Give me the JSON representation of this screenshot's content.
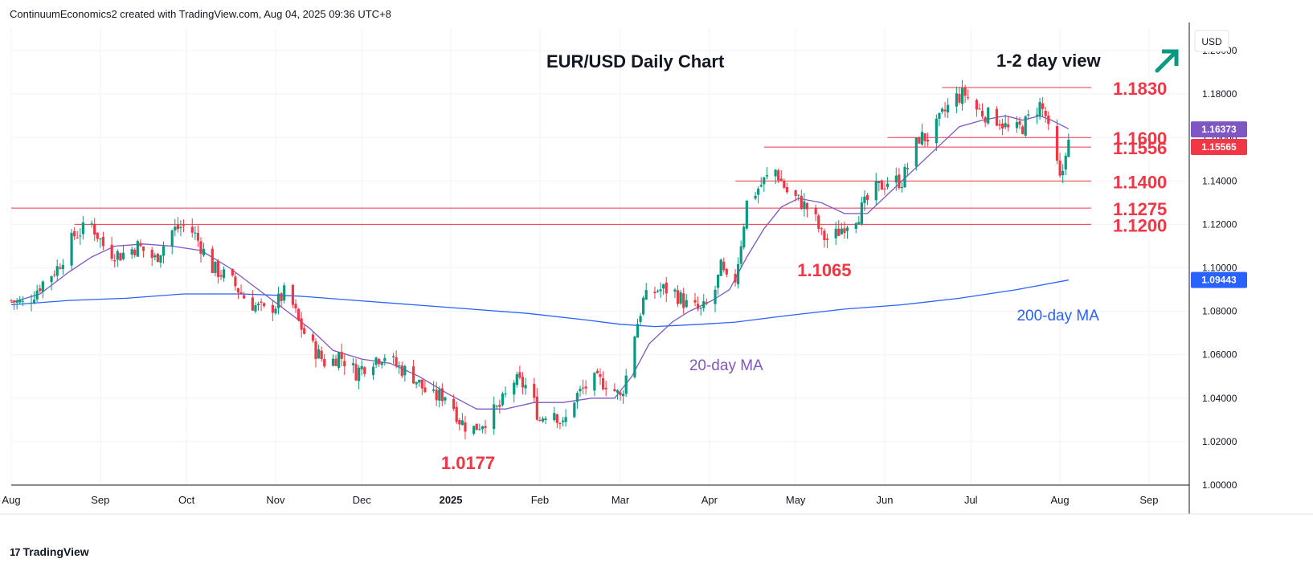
{
  "header": {
    "attribution": "ContinuumEconomics2 created with TradingView.com, Aug 04, 2025 09:36 UTC+8"
  },
  "footer": {
    "logo_mark": "17",
    "logo_text": "TradingView"
  },
  "chart_data": {
    "type": "candlestick",
    "title": "EUR/USD Daily Chart",
    "subtitle": "1-2 day view",
    "currency": "USD",
    "view_direction": "up",
    "ylim": [
      1.0,
      1.21
    ],
    "y_ticks": [
      "1.00000",
      "1.02000",
      "1.04000",
      "1.06000",
      "1.08000",
      "1.10000",
      "1.12000",
      "1.14000",
      "1.16000",
      "1.18000",
      "1.20000"
    ],
    "x_ticks": [
      {
        "label": "Aug",
        "t": 0
      },
      {
        "label": "Sep",
        "t": 31
      },
      {
        "label": "Oct",
        "t": 61
      },
      {
        "label": "Nov",
        "t": 92
      },
      {
        "label": "Dec",
        "t": 122
      },
      {
        "label": "2025",
        "t": 153,
        "bold": true
      },
      {
        "label": "Feb",
        "t": 184
      },
      {
        "label": "Mar",
        "t": 212
      },
      {
        "label": "Apr",
        "t": 243
      },
      {
        "label": "May",
        "t": 273
      },
      {
        "label": "Jun",
        "t": 304
      },
      {
        "label": "Jul",
        "t": 334
      },
      {
        "label": "Aug",
        "t": 365
      },
      {
        "label": "Sep",
        "t": 396
      }
    ],
    "colors": {
      "up": "#089981",
      "down": "#f23645",
      "level": "#f23645",
      "ma20": "#7e57c2",
      "ma200": "#2962ff",
      "arrow": "#089981"
    },
    "levels": [
      {
        "value": 1.183,
        "label": "1.1830",
        "from_t": 324
      },
      {
        "value": 1.16,
        "label": "1.1600",
        "from_t": 305
      },
      {
        "value": 1.1556,
        "label": "1.1556",
        "from_t": 262
      },
      {
        "value": 1.14,
        "label": "1.1400",
        "from_t": 252
      },
      {
        "value": 1.1275,
        "label": "1.1275",
        "from_t": 0
      },
      {
        "value": 1.12,
        "label": "1.1200",
        "from_t": 22
      }
    ],
    "price_tags": [
      {
        "value": 1.16373,
        "label": "1.16373",
        "color": "#7e57c2"
      },
      {
        "value": 1.15565,
        "label": "1.15565",
        "color": "#f23645"
      },
      {
        "value": 1.09443,
        "label": "1.09443",
        "color": "#2962ff"
      }
    ],
    "annotations": [
      {
        "text": "1.0177",
        "t": 159,
        "value": 1.0177
      },
      {
        "text": "1.1065",
        "t": 283,
        "value": 1.1065
      }
    ],
    "ma_labels": [
      {
        "text": "20-day MA",
        "t": 236,
        "value": 1.055
      },
      {
        "text": "200-day MA",
        "t": 350,
        "value": 1.078
      }
    ],
    "price_path": [
      [
        0,
        1.085
      ],
      [
        5,
        1.083
      ],
      [
        10,
        1.092
      ],
      [
        16,
        1.1
      ],
      [
        22,
        1.115
      ],
      [
        28,
        1.12
      ],
      [
        33,
        1.108
      ],
      [
        38,
        1.106
      ],
      [
        44,
        1.11
      ],
      [
        50,
        1.104
      ],
      [
        56,
        1.117
      ],
      [
        61,
        1.12
      ],
      [
        64,
        1.115
      ],
      [
        70,
        1.1
      ],
      [
        76,
        1.095
      ],
      [
        82,
        1.085
      ],
      [
        88,
        1.08
      ],
      [
        92,
        1.083
      ],
      [
        96,
        1.09
      ],
      [
        100,
        1.075
      ],
      [
        104,
        1.065
      ],
      [
        110,
        1.055
      ],
      [
        114,
        1.06
      ],
      [
        120,
        1.052
      ],
      [
        126,
        1.058
      ],
      [
        130,
        1.06
      ],
      [
        134,
        1.055
      ],
      [
        140,
        1.05
      ],
      [
        146,
        1.04
      ],
      [
        152,
        1.042
      ],
      [
        156,
        1.03
      ],
      [
        160,
        1.025
      ],
      [
        165,
        1.03
      ],
      [
        170,
        1.036
      ],
      [
        175,
        1.048
      ],
      [
        180,
        1.045
      ],
      [
        184,
        1.03
      ],
      [
        188,
        1.037
      ],
      [
        192,
        1.027
      ],
      [
        196,
        1.04
      ],
      [
        202,
        1.048
      ],
      [
        208,
        1.047
      ],
      [
        212,
        1.04
      ],
      [
        214,
        1.05
      ],
      [
        217,
        1.07
      ],
      [
        220,
        1.085
      ],
      [
        225,
        1.09
      ],
      [
        230,
        1.09
      ],
      [
        235,
        1.083
      ],
      [
        240,
        1.08
      ],
      [
        244,
        1.085
      ],
      [
        247,
        1.1
      ],
      [
        250,
        1.09
      ],
      [
        252,
        1.095
      ],
      [
        254,
        1.112
      ],
      [
        256,
        1.13
      ],
      [
        259,
        1.135
      ],
      [
        262,
        1.14
      ],
      [
        266,
        1.145
      ],
      [
        270,
        1.135
      ],
      [
        275,
        1.13
      ],
      [
        279,
        1.125
      ],
      [
        282,
        1.115
      ],
      [
        285,
        1.112
      ],
      [
        290,
        1.12
      ],
      [
        295,
        1.125
      ],
      [
        300,
        1.135
      ],
      [
        305,
        1.14
      ],
      [
        310,
        1.14
      ],
      [
        313,
        1.15
      ],
      [
        316,
        1.16
      ],
      [
        320,
        1.16
      ],
      [
        324,
        1.17
      ],
      [
        328,
        1.178
      ],
      [
        332,
        1.18
      ],
      [
        336,
        1.173
      ],
      [
        340,
        1.17
      ],
      [
        344,
        1.168
      ],
      [
        348,
        1.162
      ],
      [
        352,
        1.165
      ],
      [
        356,
        1.172
      ],
      [
        358,
        1.175
      ],
      [
        360,
        1.17
      ],
      [
        362,
        1.155
      ],
      [
        364,
        1.147
      ],
      [
        365,
        1.14
      ],
      [
        366,
        1.145
      ],
      [
        367,
        1.155
      ],
      [
        368,
        1.157
      ]
    ],
    "ma20_path": [
      [
        0,
        1.084
      ],
      [
        10,
        1.088
      ],
      [
        20,
        1.098
      ],
      [
        28,
        1.105
      ],
      [
        36,
        1.11
      ],
      [
        46,
        1.111
      ],
      [
        56,
        1.11
      ],
      [
        66,
        1.108
      ],
      [
        76,
        1.1
      ],
      [
        86,
        1.09
      ],
      [
        96,
        1.08
      ],
      [
        104,
        1.072
      ],
      [
        112,
        1.062
      ],
      [
        122,
        1.058
      ],
      [
        132,
        1.056
      ],
      [
        142,
        1.05
      ],
      [
        152,
        1.042
      ],
      [
        162,
        1.035
      ],
      [
        172,
        1.035
      ],
      [
        182,
        1.038
      ],
      [
        192,
        1.038
      ],
      [
        202,
        1.04
      ],
      [
        210,
        1.04
      ],
      [
        216,
        1.05
      ],
      [
        222,
        1.065
      ],
      [
        230,
        1.075
      ],
      [
        236,
        1.08
      ],
      [
        244,
        1.085
      ],
      [
        250,
        1.09
      ],
      [
        256,
        1.105
      ],
      [
        262,
        1.118
      ],
      [
        268,
        1.128
      ],
      [
        274,
        1.132
      ],
      [
        282,
        1.13
      ],
      [
        290,
        1.125
      ],
      [
        298,
        1.125
      ],
      [
        306,
        1.135
      ],
      [
        314,
        1.145
      ],
      [
        322,
        1.155
      ],
      [
        330,
        1.165
      ],
      [
        338,
        1.168
      ],
      [
        346,
        1.17
      ],
      [
        352,
        1.168
      ],
      [
        358,
        1.17
      ],
      [
        362,
        1.168
      ],
      [
        368,
        1.164
      ]
    ],
    "ma200_path": [
      [
        0,
        1.083
      ],
      [
        20,
        1.085
      ],
      [
        40,
        1.086
      ],
      [
        60,
        1.088
      ],
      [
        80,
        1.088
      ],
      [
        100,
        1.087
      ],
      [
        120,
        1.085
      ],
      [
        140,
        1.083
      ],
      [
        160,
        1.081
      ],
      [
        180,
        1.079
      ],
      [
        200,
        1.076
      ],
      [
        212,
        1.074
      ],
      [
        224,
        1.073
      ],
      [
        240,
        1.074
      ],
      [
        252,
        1.075
      ],
      [
        270,
        1.078
      ],
      [
        290,
        1.081
      ],
      [
        310,
        1.083
      ],
      [
        330,
        1.086
      ],
      [
        350,
        1.09
      ],
      [
        368,
        1.0944
      ]
    ]
  }
}
